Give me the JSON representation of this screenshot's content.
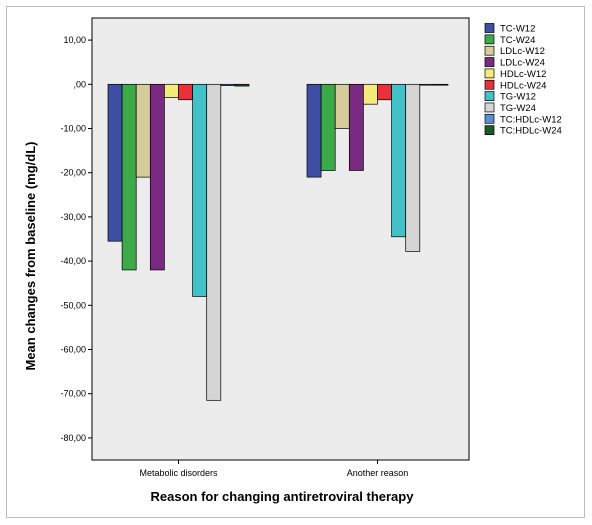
{
  "chart_data": {
    "type": "bar",
    "categories": [
      "Metabolic disorders",
      "Another reason"
    ],
    "series": [
      {
        "name": "TC-W12",
        "color": "#3e4fa3",
        "values": [
          -35.5,
          -21.0
        ]
      },
      {
        "name": "TC-W24",
        "color": "#3daa4a",
        "values": [
          -42.0,
          -19.5
        ]
      },
      {
        "name": "LDLc-W12",
        "color": "#d6cb9a",
        "values": [
          -21.0,
          -10.0
        ]
      },
      {
        "name": "LDLc-W24",
        "color": "#7b2a82",
        "values": [
          -42.0,
          -19.5
        ]
      },
      {
        "name": "HDLc-W12",
        "color": "#f4ec7a",
        "values": [
          -3.0,
          -4.5
        ]
      },
      {
        "name": "HDLc-W24",
        "color": "#e8323a",
        "values": [
          -3.5,
          -3.5
        ]
      },
      {
        "name": "TG-W12",
        "color": "#42c1c8",
        "values": [
          -48.0,
          -34.5
        ]
      },
      {
        "name": "TG-W24",
        "color": "#d5d5d5",
        "values": [
          -71.5,
          -37.8
        ]
      },
      {
        "name": "TC:HDLc-W12",
        "color": "#5f8fd2",
        "values": [
          -0.3,
          -0.2
        ]
      },
      {
        "name": "TC:HDLc-W24",
        "color": "#1d5a2e",
        "values": [
          -0.4,
          -0.2
        ]
      }
    ],
    "ylim": [
      -85,
      15
    ],
    "yticks": [
      "10,00",
      ",00",
      "-10,00",
      "-20,00",
      "-30,00",
      "-40,00",
      "-50,00",
      "-60,00",
      "-70,00",
      "-80,00"
    ],
    "ytick_values": [
      10,
      0,
      -10,
      -20,
      -30,
      -40,
      -50,
      -60,
      -70,
      -80
    ],
    "xlabel": "Reason for changing antiretroviral therapy",
    "ylabel": "Mean changes from baseline (mg/dL)",
    "legend_position": "top-right",
    "plot_background": "#ececec",
    "grid": false
  }
}
